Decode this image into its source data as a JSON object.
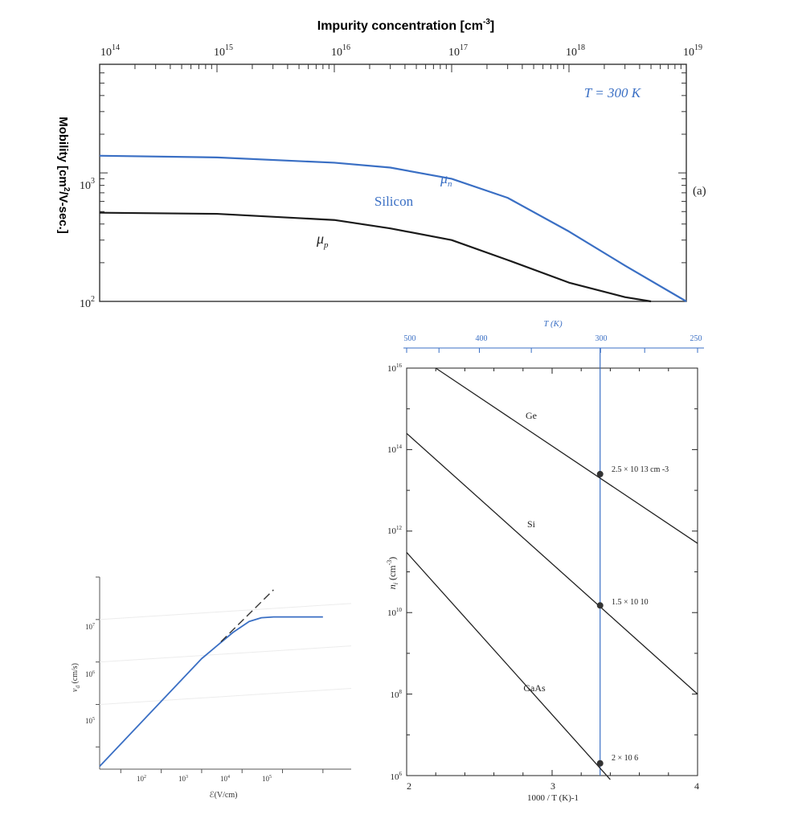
{
  "chart_data": [
    {
      "type": "line",
      "title": "",
      "xlabel": "Impurity concentration [cm-3]",
      "xlabel_parts": {
        "main": "Impurity concentration [cm",
        "sup": "-3",
        "close": "]"
      },
      "ylabel": "Mobility [cm2/V-sec.]",
      "ylabel_parts": {
        "a": "Mobility [cm",
        "sup": "2",
        "b": "/V-sec.]"
      },
      "xscale": "log",
      "yscale": "log",
      "xlim": [
        100000000000000.0,
        1e+19
      ],
      "ylim": [
        100,
        7000
      ],
      "xticks": [
        {
          "base": "10",
          "exp": "14"
        },
        {
          "base": "10",
          "exp": "15"
        },
        {
          "base": "10",
          "exp": "16"
        },
        {
          "base": "10",
          "exp": "17"
        },
        {
          "base": "10",
          "exp": "18"
        },
        {
          "base": "10",
          "exp": "19"
        }
      ],
      "yticks": [
        {
          "base": "10",
          "exp": "2"
        },
        {
          "base": "10",
          "exp": "3"
        }
      ],
      "annotations": {
        "temperature": "T = 300 K",
        "material": "Silicon",
        "panel": "(a)"
      },
      "series": [
        {
          "name": "μn",
          "label_base": "μ",
          "label_sub": "n",
          "color": "#3a6fc4",
          "x": [
            100000000000000.0,
            1000000000000000.0,
            1e+16,
            3e+16,
            1e+17,
            3e+17,
            1e+18,
            3e+18,
            1e+19
          ],
          "y": [
            1360,
            1320,
            1200,
            1100,
            900,
            640,
            350,
            190,
            100
          ]
        },
        {
          "name": "μp",
          "label_base": "μ",
          "label_sub": "p",
          "color": "#1a1a1a",
          "x": [
            100000000000000.0,
            1000000000000000.0,
            1e+16,
            3e+16,
            1e+17,
            3e+17,
            1e+18,
            3e+18,
            5e+18
          ],
          "y": [
            490,
            480,
            430,
            370,
            300,
            210,
            140,
            108,
            100
          ]
        }
      ]
    },
    {
      "type": "line",
      "title": "",
      "xlabel": "1000 / T (K)-1",
      "ylabel": "ni (cm-3)",
      "ylabel_parts": {
        "base": "n",
        "sub": "i",
        "rest": " (cm",
        "sup": "-3",
        "close": ")"
      },
      "top_axis_label": "T (K)",
      "top_ticks": [
        "500",
        "400",
        "300",
        "250"
      ],
      "yscale": "log",
      "xlim": [
        2,
        4
      ],
      "ylim": [
        1000000.0,
        1e+16
      ],
      "xticks": [
        "2",
        "3",
        "4"
      ],
      "yticks": [
        {
          "base": "10",
          "exp": "16"
        },
        {
          "base": "10",
          "exp": "14"
        },
        {
          "base": "10",
          "exp": "12"
        },
        {
          "base": "10",
          "exp": "10"
        },
        {
          "base": "10",
          "exp": "8"
        },
        {
          "base": "10",
          "exp": "6"
        }
      ],
      "reference_line_x": 3.33,
      "series": [
        {
          "name": "Ge",
          "x": [
            2.2,
            4.0
          ],
          "y": [
            1e+16,
            500000000000.0
          ]
        },
        {
          "name": "Si",
          "x": [
            2.0,
            4.0
          ],
          "y": [
            250000000000000.0,
            100000000.0
          ]
        },
        {
          "name": "GaAs",
          "x": [
            2.0,
            3.4
          ],
          "y": [
            300000000000.0,
            800000.0
          ]
        }
      ],
      "points": [
        {
          "x": 3.33,
          "y": 25000000000000.0,
          "label": "2.5 × 10 13 cm -3"
        },
        {
          "x": 3.33,
          "y": 15000000000.0,
          "label": "1.5 × 10 10"
        },
        {
          "x": 3.33,
          "y": 2000000.0,
          "label": "2 × 10 6"
        }
      ]
    },
    {
      "type": "line",
      "title": "",
      "xlabel": "ℰ(V/cm)",
      "ylabel": "vd (cm/s)",
      "ylabel_parts": {
        "base": "v",
        "sub": "d",
        "rest": " (cm/s)"
      },
      "xscale": "log",
      "yscale": "log",
      "xlim": [
        3,
        5000000.0
      ],
      "ylim": [
        3000.0,
        100000000.0
      ],
      "xticks": [
        {
          "base": "10",
          "exp": "2"
        },
        {
          "base": "10",
          "exp": "3"
        },
        {
          "base": "10",
          "exp": "4"
        },
        {
          "base": "10",
          "exp": "5"
        }
      ],
      "yticks": [
        {
          "base": "10",
          "exp": "7"
        },
        {
          "base": "10",
          "exp": "6"
        },
        {
          "base": "10",
          "exp": "5"
        }
      ],
      "series": [
        {
          "name": "",
          "color": "#3a6fc4",
          "x": [
            3,
            1000,
            2500,
            6000,
            15000,
            30000,
            60000,
            1000000
          ],
          "y": [
            3500,
            1200000.0,
            2500000.0,
            5000000.0,
            9000000.0,
            11000000.0,
            11500000.0,
            11500000.0
          ]
        },
        {
          "name": "",
          "dashed": true,
          "color": "#333333",
          "x": [
            3000,
            60000
          ],
          "y": [
            3000000.0,
            50000000.0
          ]
        }
      ]
    }
  ]
}
